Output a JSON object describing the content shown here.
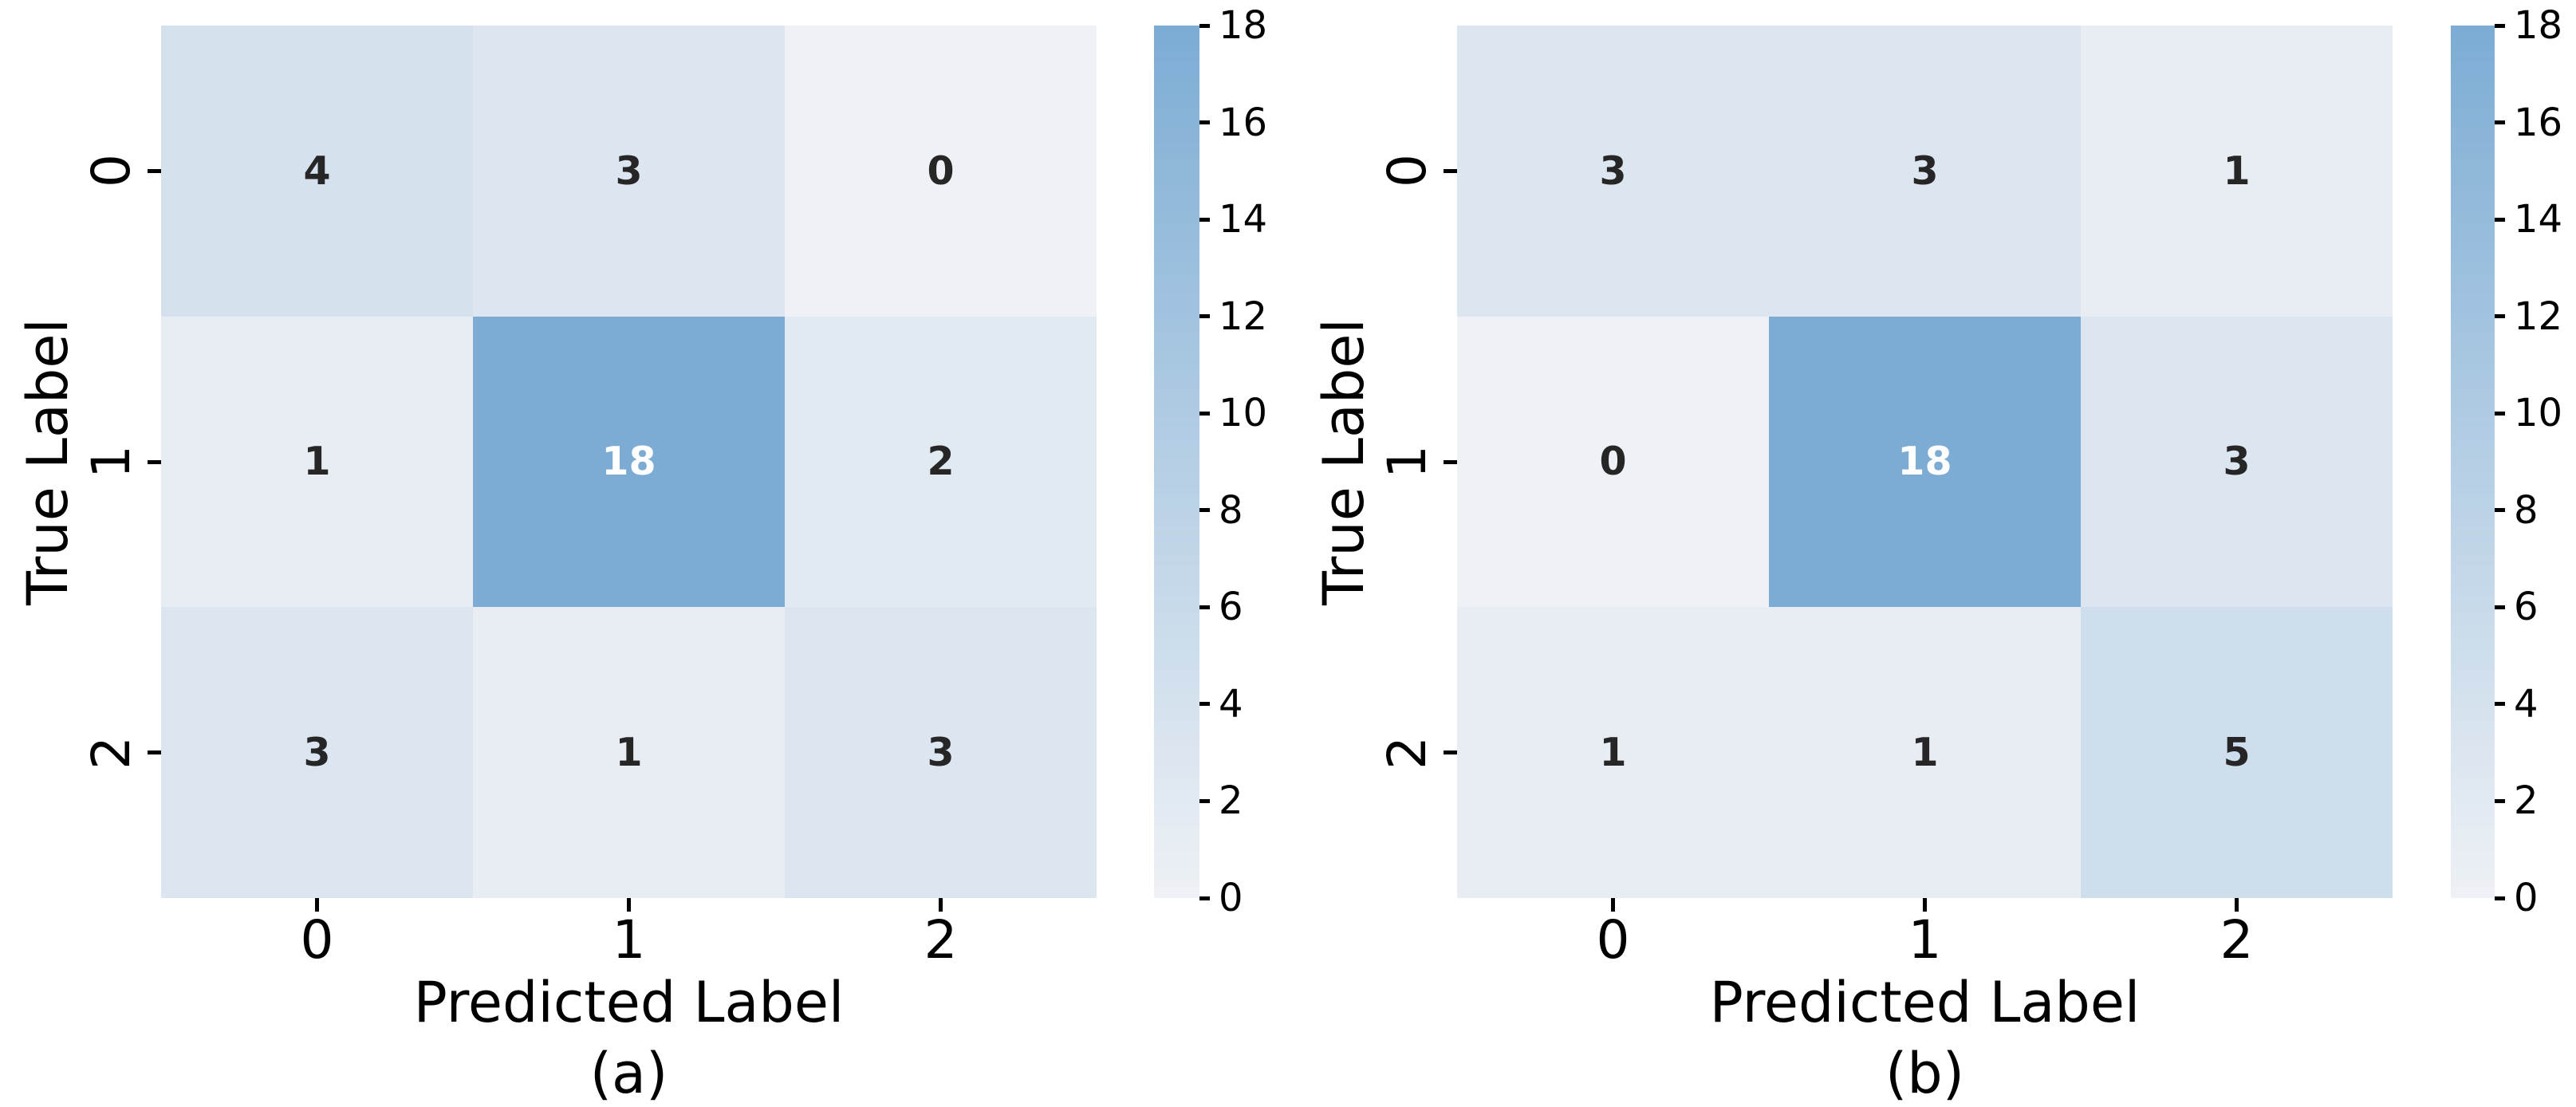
{
  "palette": {
    "low_color": "#eef1f5",
    "high_color": "#7cacd4",
    "annot_dark": "#262626",
    "annot_light": "#ffffff",
    "tick_color": "#000000",
    "background": "#ffffff"
  },
  "chart_data": [
    {
      "type": "heatmap",
      "caption": "(a)",
      "xlabel": "Predicted Label",
      "ylabel": "True Label",
      "x_ticklabels": [
        "0",
        "1",
        "2"
      ],
      "y_ticklabels": [
        "0",
        "1",
        "2"
      ],
      "values": [
        [
          4,
          3,
          0
        ],
        [
          1,
          18,
          2
        ],
        [
          3,
          1,
          3
        ]
      ],
      "vmin": 0,
      "vmax": 18,
      "colorbar_ticks": [
        0,
        2,
        4,
        6,
        8,
        10,
        12,
        14,
        16,
        18
      ]
    },
    {
      "type": "heatmap",
      "caption": "(b)",
      "xlabel": "Predicted Label",
      "ylabel": "True Label",
      "x_ticklabels": [
        "0",
        "1",
        "2"
      ],
      "y_ticklabels": [
        "0",
        "1",
        "2"
      ],
      "values": [
        [
          3,
          3,
          1
        ],
        [
          0,
          18,
          3
        ],
        [
          1,
          1,
          5
        ]
      ],
      "vmin": 0,
      "vmax": 18,
      "colorbar_ticks": [
        0,
        2,
        4,
        6,
        8,
        10,
        12,
        14,
        16,
        18
      ]
    }
  ]
}
